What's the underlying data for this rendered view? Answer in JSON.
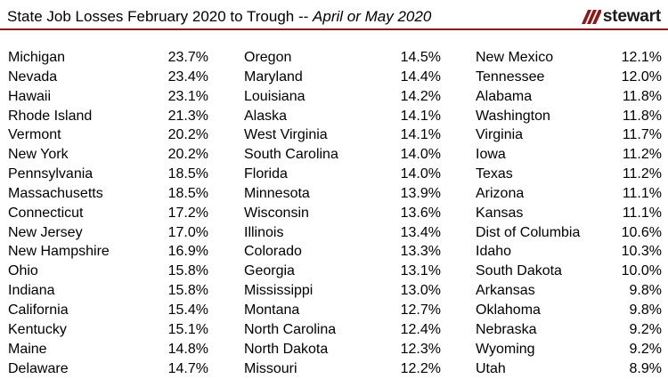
{
  "header": {
    "title": "State Job Losses February 2020 to Trough --",
    "subtitle": "April or May 2020",
    "logo_text": "stewart",
    "logo_icon": "stewart-logo-icon",
    "accent_color": "#8b1a1a"
  },
  "columns": [
    [
      {
        "state": "Michigan",
        "pct": "23.7%"
      },
      {
        "state": "Nevada",
        "pct": "23.4%"
      },
      {
        "state": "Hawaii",
        "pct": "23.1%"
      },
      {
        "state": "Rhode Island",
        "pct": "21.3%"
      },
      {
        "state": "Vermont",
        "pct": "20.2%"
      },
      {
        "state": "New York",
        "pct": "20.2%"
      },
      {
        "state": "Pennsylvania",
        "pct": "18.5%"
      },
      {
        "state": "Massachusetts",
        "pct": "18.5%"
      },
      {
        "state": "Connecticut",
        "pct": "17.2%"
      },
      {
        "state": "New Jersey",
        "pct": "17.0%"
      },
      {
        "state": "New Hampshire",
        "pct": "16.9%"
      },
      {
        "state": "Ohio",
        "pct": "15.8%"
      },
      {
        "state": "Indiana",
        "pct": "15.8%"
      },
      {
        "state": "California",
        "pct": "15.4%"
      },
      {
        "state": "Kentucky",
        "pct": "15.1%"
      },
      {
        "state": "Maine",
        "pct": "14.8%"
      },
      {
        "state": "Delaware",
        "pct": "14.7%"
      }
    ],
    [
      {
        "state": "Oregon",
        "pct": "14.5%"
      },
      {
        "state": "Maryland",
        "pct": "14.4%"
      },
      {
        "state": "Louisiana",
        "pct": "14.2%"
      },
      {
        "state": "Alaska",
        "pct": "14.1%"
      },
      {
        "state": "West Virginia",
        "pct": "14.1%"
      },
      {
        "state": "South Carolina",
        "pct": "14.0%"
      },
      {
        "state": "Florida",
        "pct": "14.0%"
      },
      {
        "state": "Minnesota",
        "pct": "13.9%"
      },
      {
        "state": "Wisconsin",
        "pct": "13.6%"
      },
      {
        "state": "Illinois",
        "pct": "13.4%"
      },
      {
        "state": "Colorado",
        "pct": "13.3%"
      },
      {
        "state": "Georgia",
        "pct": "13.1%"
      },
      {
        "state": "Mississippi",
        "pct": "13.0%"
      },
      {
        "state": "Montana",
        "pct": "12.7%"
      },
      {
        "state": "North Carolina",
        "pct": "12.4%"
      },
      {
        "state": "North Dakota",
        "pct": "12.3%"
      },
      {
        "state": "Missouri",
        "pct": "12.2%"
      }
    ],
    [
      {
        "state": "New Mexico",
        "pct": "12.1%"
      },
      {
        "state": "Tennessee",
        "pct": "12.0%"
      },
      {
        "state": "Alabama",
        "pct": "11.8%"
      },
      {
        "state": "Washington",
        "pct": "11.8%"
      },
      {
        "state": "Virginia",
        "pct": "11.7%"
      },
      {
        "state": "Iowa",
        "pct": "11.2%"
      },
      {
        "state": "Texas",
        "pct": "11.2%"
      },
      {
        "state": "Arizona",
        "pct": "11.1%"
      },
      {
        "state": "Kansas",
        "pct": "11.1%"
      },
      {
        "state": "Dist of Columbia",
        "pct": "10.6%"
      },
      {
        "state": "Idaho",
        "pct": "10.3%"
      },
      {
        "state": "South Dakota",
        "pct": "10.0%"
      },
      {
        "state": "Arkansas",
        "pct": "9.8%"
      },
      {
        "state": "Oklahoma",
        "pct": "9.8%"
      },
      {
        "state": "Nebraska",
        "pct": "9.2%"
      },
      {
        "state": "Wyoming",
        "pct": "9.2%"
      },
      {
        "state": "Utah",
        "pct": "8.9%"
      }
    ]
  ]
}
